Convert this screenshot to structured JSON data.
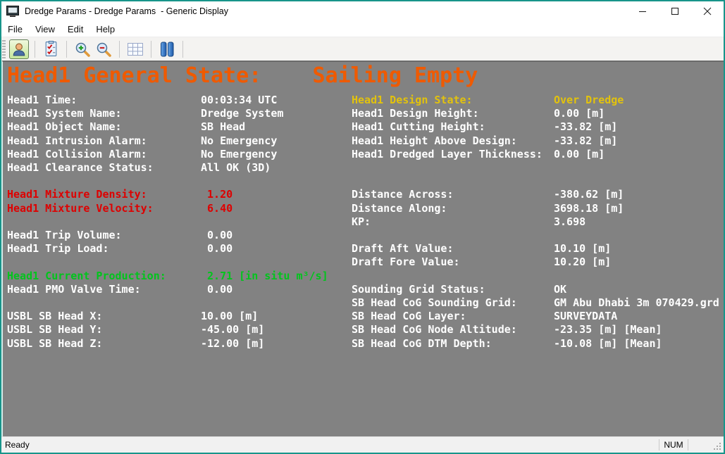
{
  "window": {
    "title": "Dredge Params - Dredge Params  - Generic Display",
    "icons": {
      "app": "application-display-icon",
      "minimize": "minimize-icon",
      "maximize": "maximize-icon",
      "close": "close-icon"
    }
  },
  "menu": {
    "items": [
      "File",
      "View",
      "Edit",
      "Help"
    ]
  },
  "toolbar": {
    "buttons": [
      {
        "name": "user-display",
        "icon": "user-icon",
        "active": true
      },
      {
        "name": "checklist",
        "icon": "checklist-icon",
        "active": false
      },
      {
        "name": "zoom-in",
        "icon": "zoom-in-icon",
        "active": false
      },
      {
        "name": "zoom-out",
        "icon": "zoom-out-icon",
        "active": false
      },
      {
        "name": "grid",
        "icon": "grid-icon",
        "active": false
      },
      {
        "name": "pause",
        "icon": "pause-icon",
        "active": false
      }
    ]
  },
  "content": {
    "header": {
      "text": "Head1 General State:    Sailing Empty",
      "color": "orange"
    },
    "colors": {
      "white": "#ffffff",
      "red": "#de0000",
      "green": "#00c51c",
      "yellow": "#e2c20d",
      "orange": "#ef5a00"
    },
    "rows": [
      {
        "left": {
          "label": "Head1 Time:",
          "value": "00:03:34 UTC",
          "color": "white"
        },
        "right": {
          "label": "Head1 Design State:",
          "value": "Over Dredge",
          "color": "yellow"
        }
      },
      {
        "left": {
          "label": "Head1 System Name:",
          "value": "Dredge System",
          "color": "white"
        },
        "right": {
          "label": "Head1 Design Height:",
          "value": "0.00 [m]",
          "color": "white"
        }
      },
      {
        "left": {
          "label": "Head1 Object Name:",
          "value": "SB Head",
          "color": "white"
        },
        "right": {
          "label": "Head1 Cutting Height:",
          "value": "-33.82 [m]",
          "color": "white"
        }
      },
      {
        "left": {
          "label": "Head1 Intrusion Alarm:",
          "value": "No Emergency",
          "color": "white"
        },
        "right": {
          "label": "Head1 Height Above Design:",
          "value": "-33.82 [m]",
          "color": "white"
        }
      },
      {
        "left": {
          "label": "Head1 Collision Alarm:",
          "value": "No Emergency",
          "color": "white"
        },
        "right": {
          "label": "Head1 Dredged Layer Thickness:",
          "value": "0.00 [m]",
          "color": "white"
        }
      },
      {
        "left": {
          "label": "Head1 Clearance Status:",
          "value": "All OK (3D)",
          "color": "white"
        },
        "right": null
      },
      {
        "left": null,
        "right": null
      },
      {
        "left": {
          "label": "Head1 Mixture Density:",
          "value": " 1.20",
          "color": "red"
        },
        "right": {
          "label": "Distance Across:",
          "value": "-380.62 [m]",
          "color": "white"
        }
      },
      {
        "left": {
          "label": "Head1 Mixture Velocity:",
          "value": " 6.40",
          "color": "red"
        },
        "right": {
          "label": "Distance Along:",
          "value": "3698.18 [m]",
          "color": "white"
        }
      },
      {
        "left": null,
        "right": {
          "label": "KP:",
          "value": "3.698",
          "color": "white"
        }
      },
      {
        "left": {
          "label": "Head1 Trip Volume:",
          "value": " 0.00",
          "color": "white"
        },
        "right": null
      },
      {
        "left": {
          "label": "Head1 Trip Load:",
          "value": " 0.00",
          "color": "white"
        },
        "right": {
          "label": "Draft Aft Value:",
          "value": "10.10 [m]",
          "color": "white"
        }
      },
      {
        "left": null,
        "right": {
          "label": "Draft Fore Value:",
          "value": "10.20 [m]",
          "color": "white"
        }
      },
      {
        "left": {
          "label": "Head1 Current Production:",
          "value": " 2.71 [in situ m³/s]",
          "color": "green"
        },
        "right": null
      },
      {
        "left": {
          "label": "Head1 PMO Valve Time:",
          "value": " 0.00",
          "color": "white"
        },
        "right": {
          "label": "Sounding Grid Status:",
          "value": "OK",
          "color": "white"
        }
      },
      {
        "left": null,
        "right": {
          "label": "SB Head CoG Sounding Grid:",
          "value": "GM Abu Dhabi 3m 070429.grd",
          "color": "white"
        }
      },
      {
        "left": {
          "label": "USBL SB Head X:",
          "value": "10.00 [m]",
          "color": "white"
        },
        "right": {
          "label": "SB Head CoG Layer:",
          "value": "SURVEYDATA",
          "color": "white"
        }
      },
      {
        "left": {
          "label": "USBL SB Head Y:",
          "value": "-45.00 [m]",
          "color": "white"
        },
        "right": {
          "label": "SB Head CoG Node Altitude:",
          "value": "-23.35 [m] [Mean]",
          "color": "white"
        }
      },
      {
        "left": {
          "label": "USBL SB Head Z:",
          "value": "-12.00 [m]",
          "color": "white"
        },
        "right": {
          "label": "SB Head CoG DTM Depth:",
          "value": "-10.08 [m] [Mean]",
          "color": "white"
        }
      }
    ]
  },
  "statusbar": {
    "ready": "Ready",
    "num": "NUM"
  }
}
